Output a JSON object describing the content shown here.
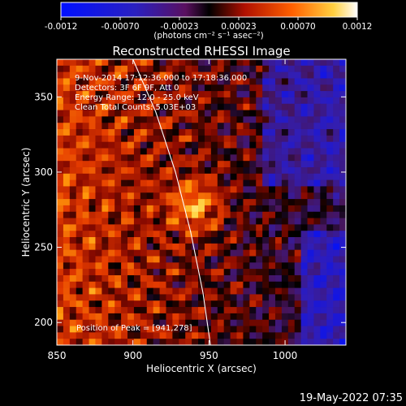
{
  "chart_data": {
    "type": "heatmap",
    "title": "Reconstructed RHESSI Image",
    "xlabel": "Heliocentric X (arcsec)",
    "ylabel": "Heliocentric Y (arcsec)",
    "xlim": [
      850,
      1040
    ],
    "ylim": [
      185,
      375
    ],
    "x_ticks": [
      850,
      900,
      950,
      1000
    ],
    "y_ticks": [
      200,
      250,
      300,
      350
    ],
    "colorbar": {
      "ticks": [
        "-0.0012",
        "-0.00070",
        "-0.00023",
        "0.00023",
        "0.00070",
        "0.0012"
      ],
      "range": [
        -0.0012,
        0.0012
      ],
      "unit_label": "(photons cm⁻² s⁻¹ asec⁻²)"
    },
    "annotations": [
      "9-Nov-2014 17:12:36.000 to 17:18:36.000",
      "Detectors: 3F 6F 9F, Att 0",
      "Energy Range: 12.0 - 25.0 keV",
      "Clean    Total Counts: 5.03E+03"
    ],
    "peak_label": "Position of Peak = [941,278]",
    "peak": [
      941,
      278
    ],
    "limb": [
      [
        900,
        375
      ],
      [
        915,
        340
      ],
      [
        928,
        300
      ],
      [
        938,
        260
      ],
      [
        946,
        220
      ],
      [
        951,
        185
      ]
    ],
    "footer": "19-May-2022 07:35"
  }
}
